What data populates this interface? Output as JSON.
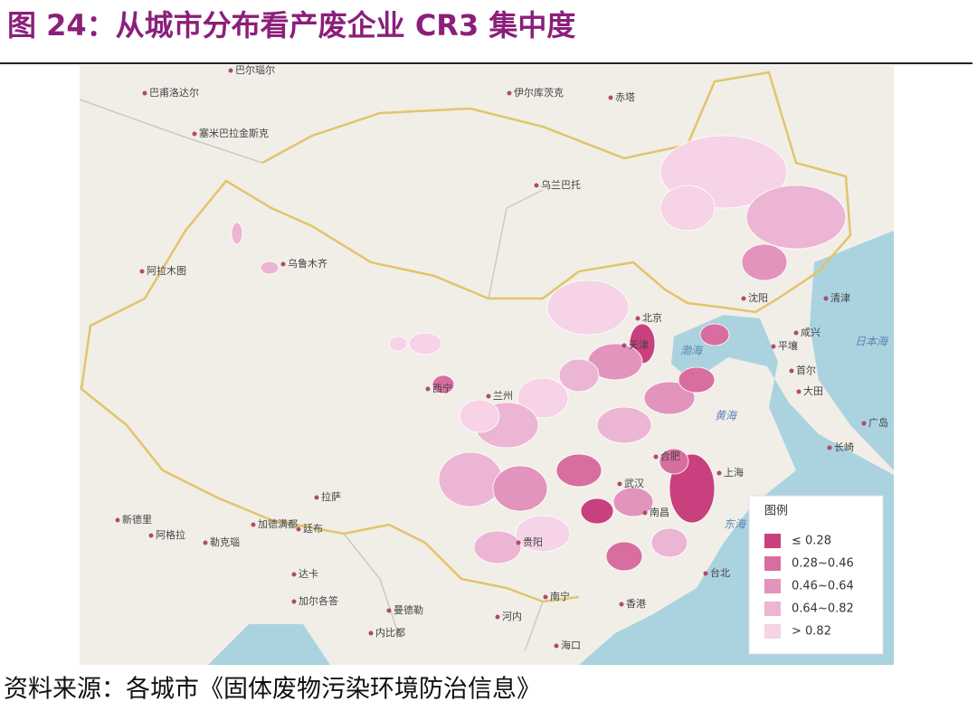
{
  "header": {
    "title": "图 24：从城市分布看产废企业 CR3 集中度"
  },
  "map": {
    "places": [
      "巴尔瑙尔",
      "巴甫洛达尔",
      "伊尔库茨克",
      "赤塔",
      "塞米巴拉金斯克",
      "乌兰巴托",
      "乌鲁木齐",
      "阿拉木图",
      "沈阳",
      "清津",
      "北京",
      "天津",
      "咸兴",
      "平壤",
      "首尔",
      "大田",
      "兰州",
      "西宁",
      "合肥",
      "上海",
      "武汉",
      "南昌",
      "拉萨",
      "贵阳",
      "南宁",
      "香港",
      "河内",
      "海口",
      "台北",
      "广岛",
      "长崎",
      "加德满都",
      "廷布",
      "达卡",
      "加尔各答",
      "曼德勒",
      "内比都",
      "新德里",
      "阿格拉",
      "勒克瑙"
    ],
    "seas": [
      "渤海",
      "黄海",
      "日本海",
      "东海"
    ],
    "legend": {
      "title": "图例",
      "items": [
        {
          "label": "≤ 0.28",
          "color": "#c9407f"
        },
        {
          "label": "0.28~0.46",
          "color": "#d86ea0"
        },
        {
          "label": "0.46~0.64",
          "color": "#e394bd"
        },
        {
          "label": "0.64~0.82",
          "color": "#edb5d4"
        },
        {
          "label": "> 0.82",
          "color": "#f6d3e7"
        }
      ]
    }
  },
  "footer": {
    "source": "资料来源：各城市《固体废物污染环境防治信息》"
  }
}
